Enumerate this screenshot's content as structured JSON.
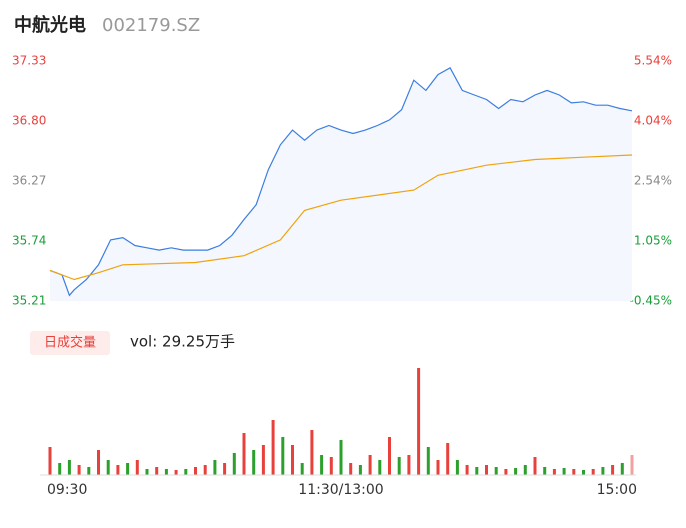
{
  "header": {
    "name": "中航光电",
    "code": "002179.SZ"
  },
  "chart_data": [
    {
      "type": "line",
      "xlim": [
        0,
        240
      ],
      "ylim": [
        35.21,
        37.33
      ],
      "yticks": [
        35.21,
        35.74,
        36.27,
        {
          "value": 36.8,
          "label": "36.80"
        },
        37.33
      ],
      "y2lim": [
        -0.45,
        5.54
      ],
      "y2ticks": [
        {
          "value": -0.45,
          "label": "-0.45%"
        },
        {
          "value": 1.05,
          "label": "1.05%"
        },
        {
          "value": 2.54,
          "label": "2.54%"
        },
        {
          "value": 4.04,
          "label": "4.04%"
        },
        {
          "value": 5.54,
          "label": "5.54%"
        }
      ],
      "tick_colors": [
        "#1a9e3a",
        "#1a9e3a",
        "#888888",
        "#e8413c",
        "#e8413c"
      ],
      "area_color": "#f4f7fd",
      "series": [
        {
          "name": "price",
          "color": "#3b7de0",
          "x": [
            0,
            5,
            8,
            10,
            15,
            20,
            25,
            30,
            35,
            40,
            45,
            50,
            55,
            60,
            65,
            70,
            75,
            80,
            85,
            90,
            95,
            100,
            105,
            110,
            115,
            120,
            125,
            130,
            135,
            140,
            145,
            150,
            155,
            160,
            165,
            170,
            175,
            180,
            185,
            190,
            195,
            200,
            205,
            210,
            215,
            220,
            225,
            230,
            235,
            240
          ],
          "values": [
            35.48,
            35.44,
            35.26,
            35.31,
            35.4,
            35.53,
            35.75,
            35.77,
            35.7,
            35.68,
            35.66,
            35.68,
            35.66,
            35.66,
            35.66,
            35.7,
            35.79,
            35.93,
            36.06,
            36.37,
            36.59,
            36.72,
            36.63,
            36.72,
            36.76,
            36.72,
            36.69,
            36.72,
            36.76,
            36.81,
            36.9,
            37.16,
            37.07,
            37.21,
            37.27,
            37.07,
            37.03,
            36.99,
            36.91,
            36.99,
            36.97,
            37.03,
            37.07,
            37.03,
            36.96,
            36.97,
            36.94,
            36.94,
            36.91,
            36.89
          ]
        },
        {
          "name": "average",
          "color": "#f0a30a",
          "x": [
            0,
            10,
            20,
            30,
            60,
            80,
            95,
            105,
            120,
            150,
            160,
            180,
            200,
            220,
            240
          ],
          "values": [
            35.48,
            35.4,
            35.46,
            35.53,
            35.55,
            35.61,
            35.75,
            36.01,
            36.1,
            36.19,
            36.32,
            36.41,
            36.46,
            36.48,
            36.5
          ]
        }
      ]
    },
    {
      "type": "bar",
      "label": "日成交量",
      "volume_text": "vol: 29.25万手",
      "xlim": [
        0,
        240
      ],
      "xticks": [
        {
          "value": 0,
          "label": "09:30"
        },
        {
          "value": 120,
          "label": "11:30/13:00"
        },
        {
          "value": 240,
          "label": "15:00"
        }
      ],
      "ylim": [
        0,
        110
      ],
      "x": [
        0,
        4,
        8,
        12,
        16,
        20,
        24,
        28,
        32,
        36,
        40,
        44,
        48,
        52,
        56,
        60,
        64,
        68,
        72,
        76,
        80,
        84,
        88,
        92,
        96,
        100,
        104,
        108,
        112,
        116,
        120,
        124,
        128,
        132,
        136,
        140,
        144,
        148,
        152,
        156,
        160,
        164,
        168,
        172,
        176,
        180,
        184,
        188,
        192,
        196,
        200,
        204,
        208,
        212,
        216,
        220,
        224,
        228,
        232,
        236,
        240
      ],
      "values": [
        28,
        12,
        15,
        10,
        8,
        25,
        15,
        10,
        12,
        15,
        6,
        8,
        6,
        5,
        6,
        8,
        10,
        15,
        12,
        22,
        42,
        25,
        30,
        55,
        38,
        30,
        12,
        45,
        20,
        18,
        35,
        12,
        10,
        20,
        15,
        38,
        18,
        20,
        107,
        28,
        15,
        32,
        15,
        10,
        8,
        10,
        8,
        6,
        7,
        10,
        18,
        8,
        6,
        7,
        6,
        5,
        6,
        8,
        10,
        12,
        20
      ],
      "colors": [
        "#e8413c",
        "#2ca02c",
        "#2ca02c",
        "#e8413c",
        "#2ca02c",
        "#e8413c",
        "#2ca02c",
        "#e8413c",
        "#2ca02c",
        "#e8413c",
        "#2ca02c",
        "#e8413c",
        "#2ca02c",
        "#e8413c",
        "#2ca02c",
        "#e8413c",
        "#e8413c",
        "#2ca02c",
        "#e8413c",
        "#2ca02c",
        "#e8413c",
        "#2ca02c",
        "#e8413c",
        "#e8413c",
        "#2ca02c",
        "#e8413c",
        "#2ca02c",
        "#e8413c",
        "#2ca02c",
        "#e8413c",
        "#2ca02c",
        "#e8413c",
        "#2ca02c",
        "#e8413c",
        "#2ca02c",
        "#e8413c",
        "#2ca02c",
        "#e8413c",
        "#e8413c",
        "#2ca02c",
        "#e8413c",
        "#e8413c",
        "#2ca02c",
        "#e8413c",
        "#2ca02c",
        "#e8413c",
        "#2ca02c",
        "#e8413c",
        "#2ca02c",
        "#2ca02c",
        "#e8413c",
        "#2ca02c",
        "#e8413c",
        "#2ca02c",
        "#e8413c",
        "#2ca02c",
        "#e8413c",
        "#2ca02c",
        "#e8413c",
        "#2ca02c",
        "#f4a0a0"
      ]
    }
  ]
}
